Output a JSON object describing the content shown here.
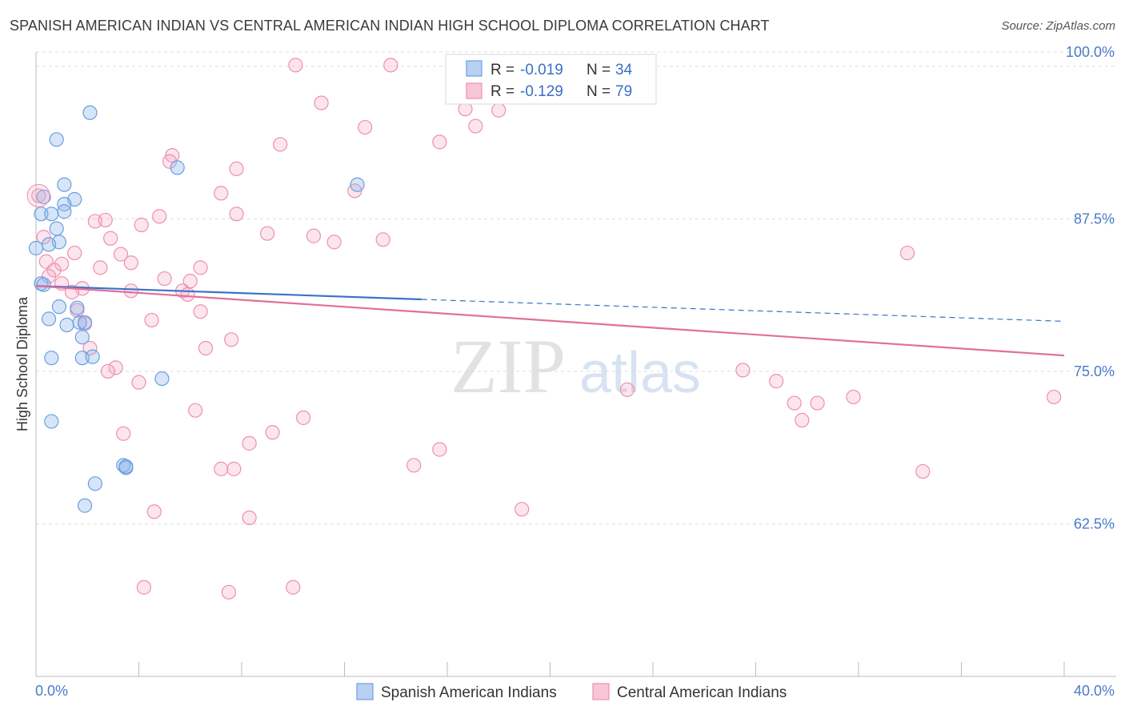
{
  "title": "SPANISH AMERICAN INDIAN VS CENTRAL AMERICAN INDIAN HIGH SCHOOL DIPLOMA CORRELATION CHART",
  "source": "Source: ZipAtlas.com",
  "watermark": {
    "zip": "ZIP",
    "atlas": "atlas"
  },
  "chart_data": {
    "type": "scatter",
    "title": "SPANISH AMERICAN INDIAN VS CENTRAL AMERICAN INDIAN HIGH SCHOOL DIPLOMA CORRELATION CHART",
    "xlabel": "",
    "ylabel": "High School Diploma",
    "xlim": [
      0,
      40
    ],
    "ylim": [
      50,
      101.5
    ],
    "x_tick_labels": [
      "0.0%",
      "40.0%"
    ],
    "y_ticks": [
      62.5,
      75.0,
      87.5,
      100.0
    ],
    "y_tick_labels": [
      "62.5%",
      "75.0%",
      "87.5%",
      "100.0%"
    ],
    "grid": true,
    "legend_placement": "top-center",
    "colors": {
      "blue": "#6b9fe0",
      "pink": "#ee8fb0",
      "blue_line": "#3b72c8",
      "pink_line": "#e0709a"
    },
    "series": [
      {
        "name": "Spanish American Indians",
        "color": "#6b9fe0",
        "r_label": "R =",
        "r_value": "-0.019",
        "n_label": "N =",
        "n_value": "34",
        "trend": {
          "x0": 0.0,
          "y0": 82.0,
          "x1": 15.0,
          "y1": 80.9,
          "dash_to_x": 40.0,
          "dash_to_y": 79.1
        },
        "points": [
          [
            2.1,
            96.2
          ],
          [
            0.8,
            94.0
          ],
          [
            5.5,
            91.7
          ],
          [
            1.1,
            90.3
          ],
          [
            12.5,
            90.3
          ],
          [
            0.3,
            89.3
          ],
          [
            1.5,
            89.1
          ],
          [
            1.1,
            88.7
          ],
          [
            0.2,
            87.9
          ],
          [
            0.6,
            87.9
          ],
          [
            1.1,
            88.1
          ],
          [
            0.8,
            86.7
          ],
          [
            0.9,
            85.6
          ],
          [
            0.5,
            85.4
          ],
          [
            0.0,
            85.1
          ],
          [
            0.2,
            82.2
          ],
          [
            0.3,
            82.1
          ],
          [
            0.9,
            80.3
          ],
          [
            1.6,
            80.2
          ],
          [
            0.5,
            79.3
          ],
          [
            1.7,
            79.0
          ],
          [
            1.9,
            79.0
          ],
          [
            1.2,
            78.8
          ],
          [
            1.8,
            77.8
          ],
          [
            0.6,
            76.1
          ],
          [
            1.8,
            76.1
          ],
          [
            2.2,
            76.2
          ],
          [
            4.9,
            74.4
          ],
          [
            0.6,
            70.9
          ],
          [
            3.4,
            67.3
          ],
          [
            3.5,
            67.1
          ],
          [
            2.3,
            65.8
          ],
          [
            1.9,
            64.0
          ],
          [
            3.5,
            67.2
          ]
        ]
      },
      {
        "name": "Central American Indians",
        "color": "#ee8fb0",
        "r_label": "R =",
        "r_value": "-0.129",
        "n_label": "N =",
        "n_value": "79",
        "trend": {
          "x0": 0.0,
          "y0": 82.0,
          "x1": 40.0,
          "y1": 76.3
        },
        "points": [
          [
            10.1,
            100.1
          ],
          [
            13.8,
            100.1
          ],
          [
            22.5,
            100.0
          ],
          [
            11.1,
            97.0
          ],
          [
            16.7,
            96.5
          ],
          [
            18.0,
            96.4
          ],
          [
            17.1,
            95.1
          ],
          [
            12.8,
            95.0
          ],
          [
            9.5,
            93.6
          ],
          [
            15.7,
            93.8
          ],
          [
            5.3,
            92.7
          ],
          [
            5.2,
            92.2
          ],
          [
            7.8,
            91.6
          ],
          [
            12.4,
            89.8
          ],
          [
            7.2,
            89.6
          ],
          [
            0.1,
            89.4
          ],
          [
            4.8,
            87.7
          ],
          [
            7.8,
            87.9
          ],
          [
            2.3,
            87.3
          ],
          [
            2.7,
            87.4
          ],
          [
            4.1,
            87.0
          ],
          [
            0.3,
            86.0
          ],
          [
            9.0,
            86.3
          ],
          [
            10.8,
            86.1
          ],
          [
            11.6,
            85.6
          ],
          [
            13.5,
            85.8
          ],
          [
            2.9,
            85.9
          ],
          [
            1.5,
            84.7
          ],
          [
            3.3,
            84.6
          ],
          [
            0.4,
            84.0
          ],
          [
            3.7,
            83.9
          ],
          [
            1.0,
            83.8
          ],
          [
            2.5,
            83.5
          ],
          [
            6.4,
            83.5
          ],
          [
            0.7,
            83.3
          ],
          [
            0.5,
            82.8
          ],
          [
            5.0,
            82.6
          ],
          [
            6.0,
            82.4
          ],
          [
            1.0,
            82.2
          ],
          [
            1.8,
            81.8
          ],
          [
            5.7,
            81.6
          ],
          [
            3.7,
            81.6
          ],
          [
            1.4,
            81.5
          ],
          [
            5.9,
            81.3
          ],
          [
            1.6,
            80.0
          ],
          [
            6.4,
            79.9
          ],
          [
            4.5,
            79.2
          ],
          [
            1.9,
            78.9
          ],
          [
            7.6,
            77.6
          ],
          [
            6.6,
            76.9
          ],
          [
            2.1,
            76.9
          ],
          [
            3.1,
            75.3
          ],
          [
            2.8,
            75.0
          ],
          [
            4.0,
            74.1
          ],
          [
            6.2,
            71.8
          ],
          [
            10.4,
            71.2
          ],
          [
            9.2,
            70.0
          ],
          [
            3.4,
            69.9
          ],
          [
            8.3,
            69.1
          ],
          [
            15.7,
            68.6
          ],
          [
            14.7,
            67.3
          ],
          [
            7.2,
            67.0
          ],
          [
            7.7,
            67.0
          ],
          [
            4.6,
            63.5
          ],
          [
            8.3,
            63.0
          ],
          [
            18.9,
            63.7
          ],
          [
            4.2,
            57.3
          ],
          [
            7.5,
            56.9
          ],
          [
            10.0,
            57.3
          ],
          [
            23.0,
            73.5
          ],
          [
            27.5,
            75.1
          ],
          [
            28.8,
            74.2
          ],
          [
            29.5,
            72.4
          ],
          [
            30.4,
            72.4
          ],
          [
            29.8,
            71.0
          ],
          [
            31.8,
            72.9
          ],
          [
            33.9,
            84.7
          ],
          [
            34.5,
            66.8
          ],
          [
            39.6,
            72.9
          ]
        ]
      }
    ]
  }
}
